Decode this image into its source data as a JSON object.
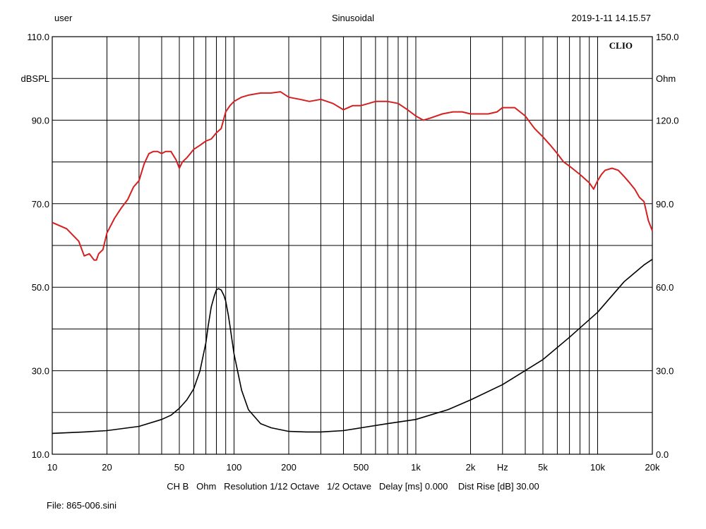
{
  "header": {
    "user": "user",
    "mode": "Sinusoidal",
    "datetime": "2019-1-11 14.15.57"
  },
  "footer": {
    "settings": "CH B   Ohm   Resolution 1/12 Octave   1/2 Octave   Delay [ms] 0.000    Dist Rise [dB] 30.00",
    "file": "File: 865-006.sini"
  },
  "brand": "CLIO",
  "colors": {
    "spl": "#d42020",
    "impedance": "#000000",
    "grid": "#000000",
    "background": "#ffffff"
  },
  "chart_data": {
    "type": "line",
    "x_scale": "log",
    "xlim": [
      10,
      20000
    ],
    "ylim_left": [
      10,
      110
    ],
    "ylim_right": [
      0,
      150
    ],
    "ylabel_left": "dBSPL",
    "ylabel_right": "Ohm",
    "xlabel": "Hz",
    "grid": true,
    "x_tick_labels": [
      {
        "value": 10,
        "label": "10"
      },
      {
        "value": 20,
        "label": "20"
      },
      {
        "value": 50,
        "label": "50"
      },
      {
        "value": 100,
        "label": "100"
      },
      {
        "value": 200,
        "label": "200"
      },
      {
        "value": 500,
        "label": "500"
      },
      {
        "value": 1000,
        "label": "1k"
      },
      {
        "value": 2000,
        "label": "2k"
      },
      {
        "value": 5000,
        "label": "5k"
      },
      {
        "value": 10000,
        "label": "10k"
      },
      {
        "value": 20000,
        "label": "20k"
      }
    ],
    "y_left_tick_labels": [
      {
        "value": 110,
        "label": "110.0"
      },
      {
        "value": 90,
        "label": "90.0"
      },
      {
        "value": 70,
        "label": "70.0"
      },
      {
        "value": 50,
        "label": "50.0"
      },
      {
        "value": 30,
        "label": "30.0"
      },
      {
        "value": 10,
        "label": "10.0"
      }
    ],
    "y_right_tick_labels": [
      {
        "value": 150,
        "label": "150.0"
      },
      {
        "value": 120,
        "label": "120.0"
      },
      {
        "value": 90,
        "label": "90.0"
      },
      {
        "value": 60,
        "label": "60.0"
      },
      {
        "value": 30,
        "label": "30.0"
      },
      {
        "value": 0,
        "label": "0.0"
      }
    ],
    "series": [
      {
        "axis": "left",
        "color": "#d42020",
        "x": [
          10,
          12,
          14,
          15,
          16,
          17,
          17.5,
          18,
          19,
          20,
          22,
          24,
          26,
          28,
          30,
          32,
          34,
          36,
          38,
          40,
          42,
          45,
          48,
          50,
          52,
          55,
          60,
          65,
          70,
          75,
          80,
          85,
          90,
          95,
          100,
          110,
          120,
          140,
          160,
          180,
          200,
          230,
          260,
          300,
          350,
          400,
          450,
          500,
          550,
          600,
          700,
          800,
          900,
          1000,
          1100,
          1200,
          1400,
          1600,
          1800,
          2000,
          2200,
          2500,
          2800,
          3000,
          3500,
          4000,
          4500,
          5000,
          5500,
          6000,
          6500,
          7000,
          8000,
          9000,
          9500,
          10000,
          10500,
          11000,
          12000,
          13000,
          14000,
          15000,
          16000,
          17000,
          18000,
          19000,
          20000
        ],
        "y": [
          65.5,
          64,
          61,
          57.5,
          58,
          56.5,
          56.5,
          58,
          59,
          63,
          66.5,
          69,
          71,
          74,
          75.5,
          79.5,
          82,
          82.5,
          82.5,
          82,
          82.5,
          82.5,
          80.5,
          78.5,
          80,
          81,
          83,
          84,
          85,
          85.5,
          87,
          88,
          92,
          93.5,
          94.5,
          95.5,
          96,
          96.5,
          96.5,
          96.8,
          95.5,
          95,
          94.5,
          95,
          94,
          92.5,
          93.5,
          93.5,
          94,
          94.5,
          94.5,
          94,
          92.5,
          91,
          90,
          90.5,
          91.5,
          92,
          92,
          91.5,
          91.5,
          91.5,
          92,
          93,
          93,
          91,
          88,
          86,
          84,
          82,
          80,
          79,
          77,
          75,
          73.5,
          75.5,
          77,
          78,
          78.5,
          78,
          76.5,
          75,
          73.5,
          71.5,
          70.5,
          66,
          63.5
        ]
      },
      {
        "axis": "right",
        "color": "#000000",
        "x": [
          10,
          15,
          20,
          30,
          40,
          45,
          50,
          55,
          60,
          65,
          70,
          72,
          75,
          78,
          80,
          82,
          85,
          88,
          90,
          93,
          95,
          100,
          110,
          120,
          140,
          160,
          200,
          250,
          300,
          400,
          500,
          700,
          1000,
          1500,
          2000,
          3000,
          5000,
          7000,
          10000,
          14000,
          18000,
          20000
        ],
        "y": [
          7.5,
          8,
          8.5,
          10,
          12.5,
          14,
          16.5,
          19.5,
          23.5,
          30,
          40,
          46,
          53,
          57,
          59,
          59.5,
          59,
          57,
          55,
          50,
          46,
          36,
          23,
          16,
          11,
          9.5,
          8.2,
          8,
          8,
          8.5,
          9.5,
          11,
          12.5,
          16,
          19.5,
          25,
          34,
          42,
          51,
          62,
          68,
          70
        ]
      }
    ]
  }
}
